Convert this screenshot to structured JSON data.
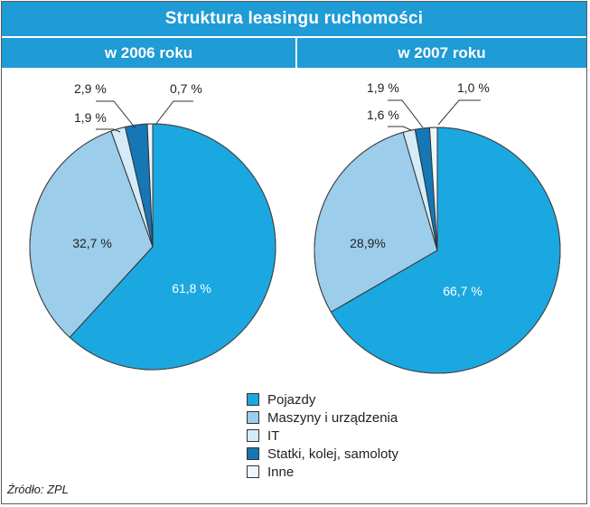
{
  "title": "Struktura leasingu ruchomości",
  "source": "Źródło: ZPL",
  "chart_data": [
    {
      "type": "pie",
      "title": "w 2006 roku",
      "slices": [
        {
          "label": "Pojazdy",
          "value": 61.8,
          "text": "61,8 %",
          "color": "#1ba8e0"
        },
        {
          "label": "Maszyny i urządzenia",
          "value": 32.7,
          "text": "32,7 %",
          "color": "#9ccdea"
        },
        {
          "label": "IT",
          "value": 1.9,
          "text": "1,9 %",
          "color": "#d4ebf8"
        },
        {
          "label": "Statki, kolej, samoloty",
          "value": 2.9,
          "text": "2,9 %",
          "color": "#1577b6"
        },
        {
          "label": "Inne",
          "value": 0.7,
          "text": "0,7 %",
          "color": "#eef6fc"
        }
      ]
    },
    {
      "type": "pie",
      "title": "w 2007 roku",
      "slices": [
        {
          "label": "Pojazdy",
          "value": 66.7,
          "text": "66,7 %",
          "color": "#1ba8e0"
        },
        {
          "label": "Maszyny i urządzenia",
          "value": 28.9,
          "text": "28,9%",
          "color": "#9ccdea"
        },
        {
          "label": "IT",
          "value": 1.6,
          "text": "1,6 %",
          "color": "#d4ebf8"
        },
        {
          "label": "Statki, kolej, samoloty",
          "value": 1.9,
          "text": "1,9 %",
          "color": "#1577b6"
        },
        {
          "label": "Inne",
          "value": 1.0,
          "text": "1,0 %",
          "color": "#eef6fc"
        }
      ]
    }
  ],
  "legend": [
    {
      "label": "Pojazdy",
      "color": "#1ba8e0"
    },
    {
      "label": "Maszyny i urządzenia",
      "color": "#9ccdea"
    },
    {
      "label": "IT",
      "color": "#d4ebf8"
    },
    {
      "label": "Statki, kolej, samoloty",
      "color": "#1577b6"
    },
    {
      "label": "Inne",
      "color": "#eef6fc"
    }
  ]
}
